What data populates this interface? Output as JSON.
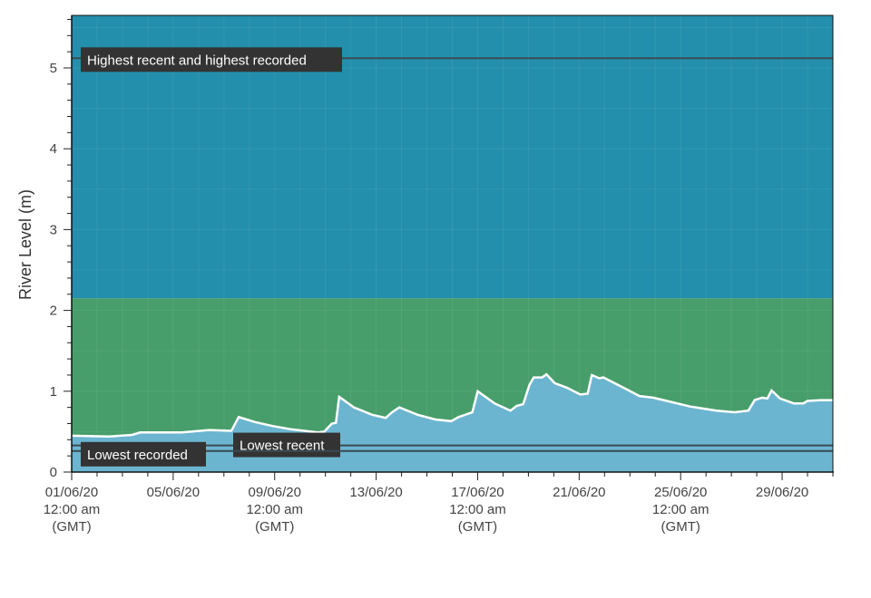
{
  "chart_data": {
    "type": "area",
    "ylabel": "River Level (m)",
    "xlabel": "",
    "ylim": [
      0,
      5.65
    ],
    "xlim": [
      "2020-06-01 00:00",
      "2020-07-01 00:00"
    ],
    "grid": true,
    "yticks": [
      "0",
      "1",
      "2",
      "3",
      "4",
      "5"
    ],
    "xticks": [
      {
        "date": "2020-06-01",
        "lines": [
          "01/06/20",
          "12:00 am",
          "(GMT)"
        ]
      },
      {
        "date": "2020-06-05",
        "lines": [
          "05/06/20"
        ]
      },
      {
        "date": "2020-06-09",
        "lines": [
          "09/06/20",
          "12:00 am",
          "(GMT)"
        ]
      },
      {
        "date": "2020-06-13",
        "lines": [
          "13/06/20"
        ]
      },
      {
        "date": "2020-06-17",
        "lines": [
          "17/06/20",
          "12:00 am",
          "(GMT)"
        ]
      },
      {
        "date": "2020-06-21",
        "lines": [
          "21/06/20"
        ]
      },
      {
        "date": "2020-06-25",
        "lines": [
          "25/06/20",
          "12:00 am",
          "(GMT)"
        ]
      },
      {
        "date": "2020-06-29",
        "lines": [
          "29/06/20"
        ]
      }
    ],
    "bands": [
      {
        "from": 0,
        "to": 2.15,
        "color": "#479e6a"
      },
      {
        "from": 2.15,
        "to": 5.65,
        "color": "#238fac"
      }
    ],
    "thresholds": [
      {
        "label": "Highest recent and highest recorded",
        "value": 5.12
      },
      {
        "label": "Lowest recent",
        "value": 0.33
      },
      {
        "label": "Lowest recorded",
        "value": 0.26
      }
    ],
    "colors": {
      "area": "#6cb5d1",
      "line": "#ffffff",
      "threshold": "#3a4a52",
      "label_bg": "#333333"
    },
    "series": [
      {
        "x": [
          "2020-06-01 00:00",
          "2020-06-02 11:00",
          "2020-06-03 09:00",
          "2020-06-03 17:00",
          "2020-06-05 08:00",
          "2020-06-06 10:00",
          "2020-06-07 07:00",
          "2020-06-07 14:00",
          "2020-06-08 05:00",
          "2020-06-08 22:00",
          "2020-06-09 15:00",
          "2020-06-10 17:00",
          "2020-06-10 23:00",
          "2020-06-11 06:00",
          "2020-06-11 10:00",
          "2020-06-11 13:00",
          "2020-06-12 03:00",
          "2020-06-12 20:00",
          "2020-06-13 09:00",
          "2020-06-13 15:00",
          "2020-06-13 22:00",
          "2020-06-14 15:00",
          "2020-06-15 08:00",
          "2020-06-15 23:00",
          "2020-06-16 06:00",
          "2020-06-16 19:00",
          "2020-06-17 00:00",
          "2020-06-17 16:00",
          "2020-06-18 07:00",
          "2020-06-18 13:00",
          "2020-06-18 19:00",
          "2020-06-19 01:00",
          "2020-06-19 05:00",
          "2020-06-19 13:00",
          "2020-06-19 17:00",
          "2020-06-20 01:00",
          "2020-06-20 13:00",
          "2020-06-21 01:00",
          "2020-06-21 08:00",
          "2020-06-21 12:00",
          "2020-06-21 19:00",
          "2020-06-21 23:00",
          "2020-06-22 20:00",
          "2020-06-23 09:00",
          "2020-06-23 22:00",
          "2020-06-24 11:00",
          "2020-06-25 09:00",
          "2020-06-26 10:00",
          "2020-06-27 03:00",
          "2020-06-27 16:00",
          "2020-06-27 22:00",
          "2020-06-28 05:00",
          "2020-06-28 10:00",
          "2020-06-28 14:00",
          "2020-06-28 22:00",
          "2020-06-29 11:00",
          "2020-06-29 20:00",
          "2020-06-30 00:00",
          "2020-06-30 13:00",
          "2020-06-30 23:45"
        ],
        "y": [
          0.45,
          0.44,
          0.46,
          0.49,
          0.49,
          0.52,
          0.51,
          0.68,
          0.62,
          0.57,
          0.53,
          0.49,
          0.5,
          0.6,
          0.61,
          0.93,
          0.8,
          0.71,
          0.67,
          0.74,
          0.8,
          0.71,
          0.65,
          0.63,
          0.68,
          0.74,
          1.0,
          0.85,
          0.76,
          0.82,
          0.84,
          1.08,
          1.17,
          1.17,
          1.21,
          1.1,
          1.04,
          0.96,
          0.97,
          1.2,
          1.16,
          1.17,
          1.03,
          0.94,
          0.92,
          0.88,
          0.81,
          0.76,
          0.74,
          0.76,
          0.89,
          0.92,
          0.91,
          1.01,
          0.91,
          0.85,
          0.85,
          0.88,
          0.89,
          0.89
        ]
      }
    ]
  }
}
